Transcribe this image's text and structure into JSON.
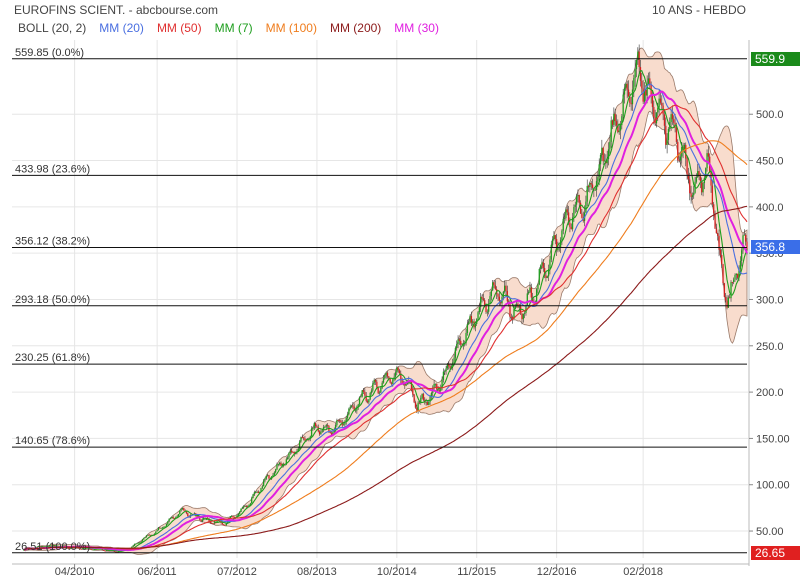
{
  "header": {
    "title": "EUROFINS SCIENT. - abcbourse.com",
    "period": "10 ANS - HEBDO"
  },
  "legend": [
    {
      "label": "BOLL (20, 2)",
      "color": "#444444"
    },
    {
      "label": "MM (20)",
      "color": "#4a6fe0"
    },
    {
      "label": "MM (50)",
      "color": "#e03030"
    },
    {
      "label": "MM (7)",
      "color": "#1e9e1e"
    },
    {
      "label": "MM (100)",
      "color": "#ef7d1e"
    },
    {
      "label": "MM (200)",
      "color": "#8b1a1a"
    },
    {
      "label": "MM (30)",
      "color": "#e020e0"
    }
  ],
  "badges": {
    "high": {
      "text": "559.9",
      "value": 559.9,
      "color": "#1a8a1a"
    },
    "current": {
      "text": "356.8",
      "value": 356.8,
      "color": "#3a6ee8"
    },
    "low": {
      "text": "26.65",
      "value": 26.65,
      "color": "#e02020"
    }
  },
  "chart_data": {
    "type": "candlestick",
    "timeframe": "weekly",
    "x_ticks": [
      "04/2010",
      "06/2011",
      "07/2012",
      "08/2013",
      "10/2014",
      "11/2015",
      "12/2016",
      "02/2018"
    ],
    "y_ticks": [
      50,
      100,
      150,
      200,
      250,
      300,
      350,
      400,
      450,
      500
    ],
    "y_tick_labels": [
      "50.00",
      "100.00",
      "150.00",
      "200.0",
      "250.0",
      "300.0",
      "350.0",
      "400.0",
      "450.0",
      "500.0"
    ],
    "ylim": [
      0,
      580
    ],
    "grid": true,
    "fibonacci": [
      {
        "label": "559.85  (0.0%)",
        "value": 559.85
      },
      {
        "label": "433.98  (23.6%)",
        "value": 433.98
      },
      {
        "label": "356.12  (38.2%)",
        "value": 356.12
      },
      {
        "label": "293.18  (50.0%)",
        "value": 293.18
      },
      {
        "label": "230.25  (61.8%)",
        "value": 230.25
      },
      {
        "label": "140.65  (78.6%)",
        "value": 140.65
      },
      {
        "label": "26.51  (100.0%)",
        "value": 26.51
      }
    ],
    "anchors": [
      [
        0,
        30
      ],
      [
        20,
        34
      ],
      [
        40,
        32
      ],
      [
        60,
        30
      ],
      [
        70,
        28
      ],
      [
        80,
        32
      ],
      [
        90,
        42
      ],
      [
        100,
        50
      ],
      [
        110,
        62
      ],
      [
        118,
        72
      ],
      [
        128,
        66
      ],
      [
        140,
        60
      ],
      [
        150,
        58
      ],
      [
        160,
        68
      ],
      [
        170,
        82
      ],
      [
        180,
        102
      ],
      [
        190,
        118
      ],
      [
        200,
        132
      ],
      [
        210,
        148
      ],
      [
        220,
        162
      ],
      [
        230,
        158
      ],
      [
        240,
        170
      ],
      [
        250,
        188
      ],
      [
        260,
        200
      ],
      [
        270,
        212
      ],
      [
        280,
        220
      ],
      [
        288,
        210
      ],
      [
        295,
        186
      ],
      [
        305,
        195
      ],
      [
        315,
        215
      ],
      [
        325,
        245
      ],
      [
        335,
        270
      ],
      [
        345,
        295
      ],
      [
        355,
        310
      ],
      [
        362,
        300
      ],
      [
        370,
        282
      ],
      [
        380,
        300
      ],
      [
        390,
        330
      ],
      [
        400,
        362
      ],
      [
        410,
        392
      ],
      [
        420,
        400
      ],
      [
        430,
        432
      ],
      [
        440,
        472
      ],
      [
        450,
        505
      ],
      [
        455,
        530
      ],
      [
        462,
        548
      ],
      [
        468,
        520
      ],
      [
        475,
        505
      ],
      [
        482,
        490
      ],
      [
        490,
        475
      ],
      [
        497,
        440
      ],
      [
        503,
        415
      ],
      [
        508,
        430
      ],
      [
        513,
        440
      ],
      [
        518,
        410
      ],
      [
        522,
        345
      ],
      [
        526,
        310
      ],
      [
        530,
        300
      ],
      [
        535,
        330
      ],
      [
        540,
        360
      ],
      [
        543,
        358
      ]
    ],
    "n_weeks": 544,
    "moving_averages": [
      {
        "period": 7,
        "color": "#1e9e1e"
      },
      {
        "period": 20,
        "color": "#4a6fe0"
      },
      {
        "period": 30,
        "color": "#e020e0"
      },
      {
        "period": 50,
        "color": "#e03030"
      },
      {
        "period": 100,
        "color": "#ef7d1e"
      },
      {
        "period": 200,
        "color": "#8b1a1a"
      }
    ],
    "bollinger": {
      "period": 20,
      "stddev": 2,
      "fill": "#f8dccd",
      "stroke": "#9a7a6a"
    }
  }
}
